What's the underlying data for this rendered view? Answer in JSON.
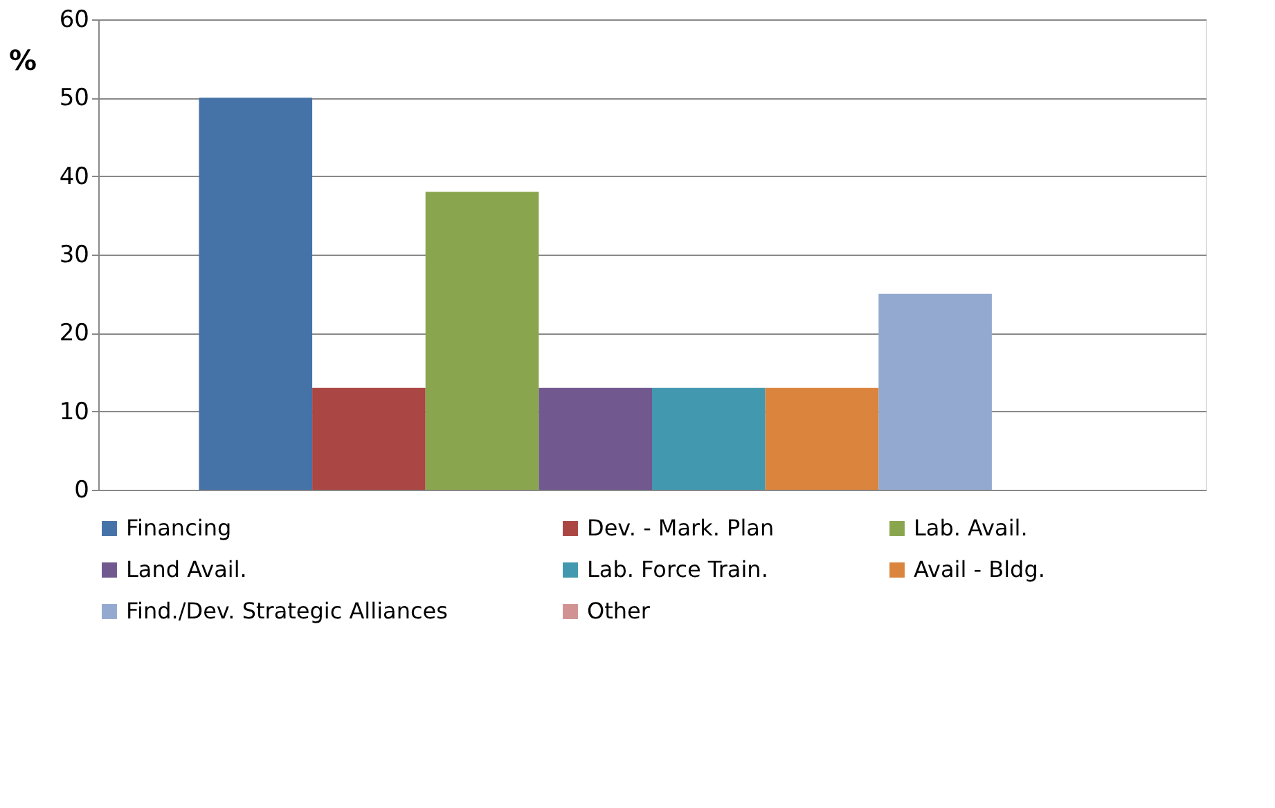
{
  "chart_data": {
    "type": "bar",
    "ylabel": "%",
    "categories": [
      null
    ],
    "series": [
      {
        "name": "Financing",
        "color": "#4572a7",
        "values": [
          50
        ]
      },
      {
        "name": "Dev. - Mark. Plan",
        "color": "#aa4643",
        "values": [
          13
        ]
      },
      {
        "name": "Lab. Avail.",
        "color": "#89a54e",
        "values": [
          38
        ]
      },
      {
        "name": "Land Avail.",
        "color": "#71588f",
        "values": [
          13
        ]
      },
      {
        "name": "Lab. Force Train.",
        "color": "#4198af",
        "values": [
          13
        ]
      },
      {
        "name": "Avail - Bldg.",
        "color": "#db843d",
        "values": [
          13
        ]
      },
      {
        "name": "Find./Dev. Strategic Alliances",
        "color": "#93a9cf",
        "values": [
          25
        ]
      },
      {
        "name": "Other",
        "color": "#d19392",
        "values": [
          null
        ]
      }
    ],
    "ylim": [
      0,
      60
    ],
    "yticks": [
      0,
      10,
      20,
      30,
      40,
      50,
      60
    ],
    "grid": "y",
    "legend": "bottom"
  }
}
